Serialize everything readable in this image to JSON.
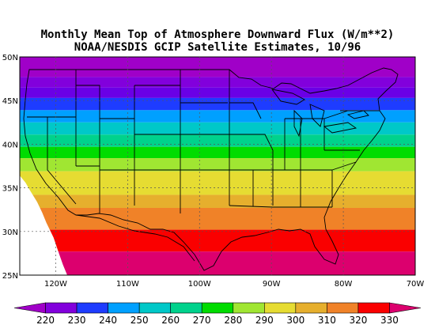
{
  "title": {
    "line1": "Monthly Mean Top of Atmosphere Downward Flux (W/m**2)",
    "line2": "NOAA/NESDIS GCIP Satellite Estimates, 10/96"
  },
  "map": {
    "lon_range": [
      -125,
      -70
    ],
    "lat_range": [
      25,
      50
    ],
    "lat_ticks": [
      {
        "value": 50,
        "label": "50N"
      },
      {
        "value": 45,
        "label": "45N"
      },
      {
        "value": 40,
        "label": "40N"
      },
      {
        "value": 35,
        "label": "35N"
      },
      {
        "value": 30,
        "label": "30N"
      },
      {
        "value": 25,
        "label": "25N"
      }
    ],
    "lon_ticks": [
      {
        "value": -120,
        "label": "120W"
      },
      {
        "value": -110,
        "label": "110W"
      },
      {
        "value": -100,
        "label": "100W"
      },
      {
        "value": -90,
        "label": "90W"
      },
      {
        "value": -80,
        "label": "80W"
      },
      {
        "value": -70,
        "label": "70W"
      }
    ],
    "grid": "dashed at tick values"
  },
  "colorbar": {
    "levels": [
      "220",
      "230",
      "240",
      "250",
      "260",
      "270",
      "280",
      "290",
      "300",
      "310",
      "320",
      "330"
    ],
    "colors": [
      "#a000c8",
      "#8200dc",
      "#1e3cff",
      "#00a0ff",
      "#00c8c8",
      "#00d28c",
      "#00dc00",
      "#a0e632",
      "#e6dc32",
      "#e6af2d",
      "#f08228",
      "#fa0000",
      "#dc006e"
    ]
  },
  "bands": [
    {
      "lat_top": 50.0,
      "lat_bottom": 47.7,
      "color": "#a000c8"
    },
    {
      "lat_top": 47.7,
      "lat_bottom": 46.5,
      "color": "#8200dc"
    },
    {
      "lat_top": 46.5,
      "lat_bottom": 45.3,
      "color": "#6a00e6"
    },
    {
      "lat_top": 45.3,
      "lat_bottom": 43.9,
      "color": "#1e3cff"
    },
    {
      "lat_top": 43.9,
      "lat_bottom": 42.5,
      "color": "#00a0ff"
    },
    {
      "lat_top": 42.5,
      "lat_bottom": 41.1,
      "color": "#00c8c8"
    },
    {
      "lat_top": 41.1,
      "lat_bottom": 39.7,
      "color": "#00d28c"
    },
    {
      "lat_top": 39.7,
      "lat_bottom": 38.4,
      "color": "#00dc00"
    },
    {
      "lat_top": 38.4,
      "lat_bottom": 36.9,
      "color": "#a0e632"
    },
    {
      "lat_top": 36.9,
      "lat_bottom": 34.2,
      "color": "#e6dc32"
    },
    {
      "lat_top": 34.2,
      "lat_bottom": 32.7,
      "color": "#e6af2d"
    },
    {
      "lat_top": 32.7,
      "lat_bottom": 30.2,
      "color": "#f08228"
    },
    {
      "lat_top": 30.2,
      "lat_bottom": 27.7,
      "color": "#fa0000"
    },
    {
      "lat_top": 27.7,
      "lat_bottom": 25.0,
      "color": "#dc006e"
    }
  ],
  "missing_region": {
    "color": "#ffffff",
    "edge_points": [
      [
        -125.0,
        36.4
      ],
      [
        -124.2,
        35.6
      ],
      [
        -123.5,
        34.6
      ],
      [
        -122.6,
        33.4
      ],
      [
        -121.9,
        32.2
      ],
      [
        -121.3,
        31.0
      ],
      [
        -120.3,
        29.3
      ],
      [
        -119.6,
        27.6
      ],
      [
        -119.0,
        26.2
      ],
      [
        -118.4,
        25.0
      ]
    ]
  },
  "geography": {
    "coast_color": "#000000",
    "border_color": "#000000"
  }
}
